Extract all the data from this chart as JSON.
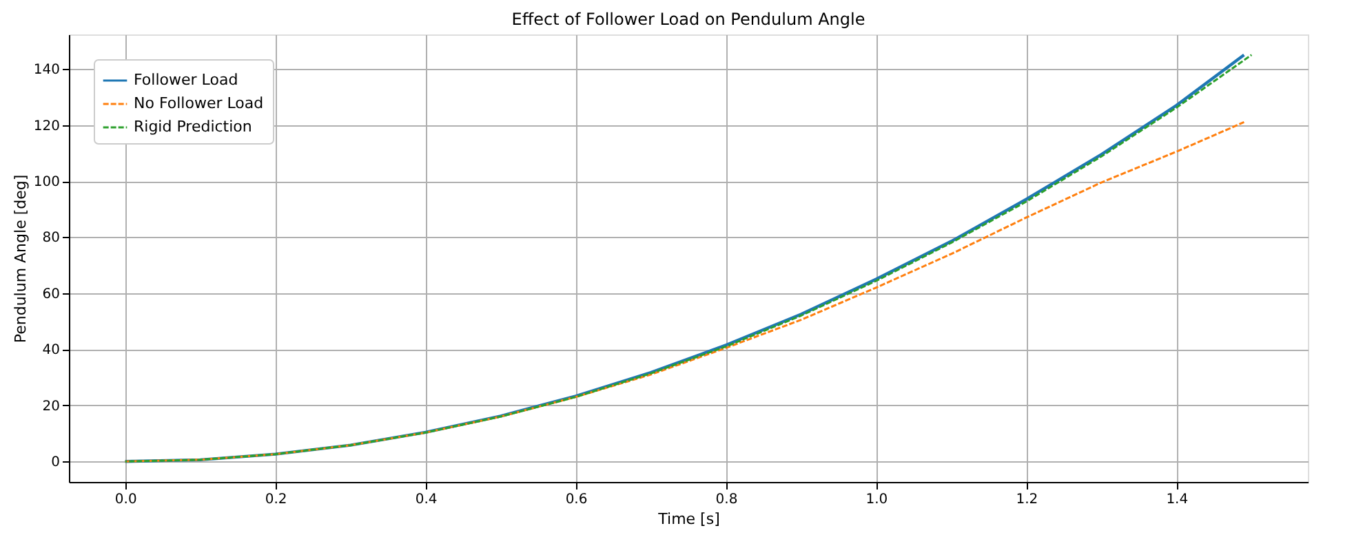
{
  "chart_data": {
    "type": "line",
    "title": "Effect of Follower Load on Pendulum Angle",
    "xlabel": "Time [s]",
    "ylabel": "Pendulum Angle [deg]",
    "xlim": [
      -0.075,
      1.575
    ],
    "ylim": [
      -7.3,
      152.3
    ],
    "xticks": [
      {
        "value": 0,
        "label": "0.0"
      },
      {
        "value": 0.2,
        "label": "0.2"
      },
      {
        "value": 0.4,
        "label": "0.4"
      },
      {
        "value": 0.6,
        "label": "0.6"
      },
      {
        "value": 0.8,
        "label": "0.8"
      },
      {
        "value": 1.0,
        "label": "1.0"
      },
      {
        "value": 1.2,
        "label": "1.2"
      },
      {
        "value": 1.4,
        "label": "1.4"
      }
    ],
    "yticks": [
      0,
      20,
      40,
      60,
      80,
      100,
      120,
      140
    ],
    "grid": true,
    "legend": "top left",
    "marker": "none",
    "series": [
      {
        "name": "Follower Load",
        "color": "#1f77b4",
        "line_style": "solid",
        "x": [
          0,
          0.1,
          0.2,
          0.3,
          0.4,
          0.5,
          0.6,
          0.7,
          0.8,
          0.9,
          1.0,
          1.1,
          1.2,
          1.3,
          1.4,
          1.49
        ],
        "values": [
          0,
          0.6,
          2.6,
          5.8,
          10.4,
          16.2,
          23.3,
          31.7,
          41.5,
          52.5,
          65,
          78.5,
          93.5,
          109.5,
          127,
          145
        ]
      },
      {
        "name": "No Follower Load",
        "color": "#ff7f0e",
        "line_style": "dashed",
        "x": [
          0,
          0.1,
          0.2,
          0.3,
          0.4,
          0.5,
          0.6,
          0.7,
          0.8,
          0.9,
          1.0,
          1.1,
          1.2,
          1.3,
          1.4,
          1.49
        ],
        "values": [
          0,
          0.6,
          2.6,
          5.8,
          10.3,
          16,
          23,
          31,
          40.5,
          50.5,
          62,
          74,
          87,
          99.5,
          110.5,
          121
        ]
      },
      {
        "name": "Rigid Prediction",
        "color": "#2ca02c",
        "line_style": "dashed",
        "x": [
          0,
          0.1,
          0.2,
          0.3,
          0.4,
          0.5,
          0.6,
          0.7,
          0.8,
          0.9,
          1.0,
          1.1,
          1.2,
          1.3,
          1.4,
          1.5
        ],
        "values": [
          0,
          0.6,
          2.6,
          5.8,
          10.3,
          16,
          23,
          31.4,
          41,
          52,
          64.4,
          78,
          92.7,
          108.8,
          126.2,
          145
        ]
      }
    ]
  }
}
